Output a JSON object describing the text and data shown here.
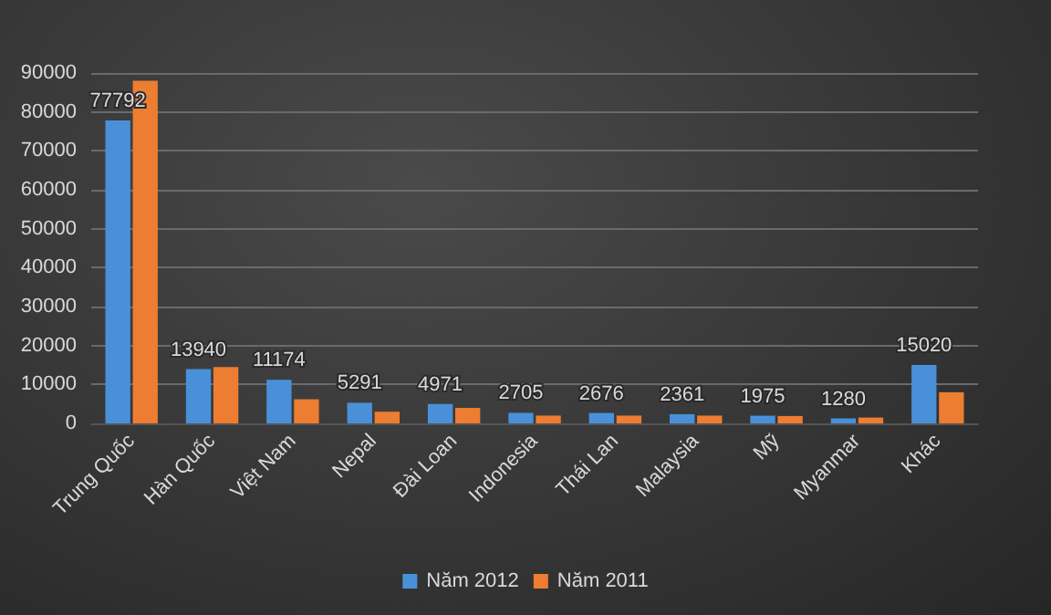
{
  "chart_data": {
    "type": "bar",
    "categories": [
      "Trung Quốc",
      "Hàn Quốc",
      "Việt Nam",
      "Nepal",
      "Đài Loan",
      "Indonesia",
      "Thái Lan",
      "Malaysia",
      "Mỹ",
      "Myanmar",
      "Khác"
    ],
    "series": [
      {
        "name": "Năm 2012",
        "color": "#4a90d9",
        "values": [
          77792,
          13940,
          11174,
          5291,
          4971,
          2705,
          2676,
          2361,
          1975,
          1280,
          15020
        ],
        "data_labels": true
      },
      {
        "name": "Năm 2011",
        "color": "#ed7d31",
        "values": [
          88000,
          14500,
          6200,
          3000,
          4000,
          2000,
          2000,
          2000,
          1900,
          1500,
          8000
        ]
      }
    ],
    "ylim": [
      0,
      90000
    ],
    "yticks": [
      0,
      10000,
      20000,
      30000,
      40000,
      50000,
      60000,
      70000,
      80000,
      90000
    ],
    "grid": "y",
    "legend": "bottom"
  }
}
